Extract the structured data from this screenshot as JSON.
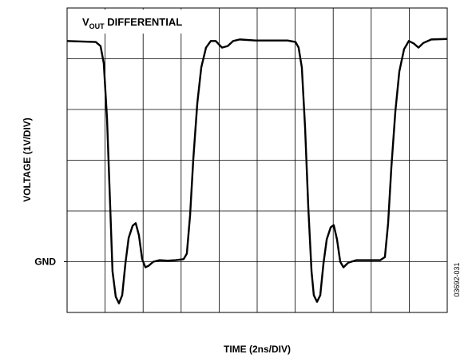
{
  "chart_data": {
    "type": "line",
    "annotation": [
      "V",
      "OUT",
      " DIFFERENTIAL"
    ],
    "ylabel": "VOLTAGE (1V/DIV)",
    "xlabel": "TIME (2ns/DIV)",
    "figure_id": "03692-031",
    "xlim": [
      0,
      20
    ],
    "ylim": [
      -1,
      5
    ],
    "xgrid": [
      2,
      4,
      6,
      8,
      10,
      12,
      14,
      16,
      18
    ],
    "ygrid": [
      0,
      1,
      2,
      3,
      4
    ],
    "yticks": [
      {
        "value": 0,
        "label": "GND"
      }
    ],
    "grid": true,
    "series": [
      {
        "color": "#000000",
        "x": [
          0,
          1.51,
          1.76,
          1.93,
          2.1,
          2.27,
          2.39,
          2.56,
          2.73,
          2.9,
          3.07,
          3.24,
          3.45,
          3.61,
          3.78,
          3.95,
          4.12,
          4.29,
          4.54,
          4.87,
          5.29,
          5.71,
          6.13,
          6.3,
          6.47,
          6.64,
          6.85,
          7.06,
          7.31,
          7.56,
          7.82,
          8.15,
          8.45,
          8.74,
          9.08,
          9.92,
          11.6,
          12.02,
          12.18,
          12.35,
          12.52,
          12.69,
          12.86,
          12.98,
          13.15,
          13.32,
          13.49,
          13.66,
          13.87,
          14.03,
          14.2,
          14.37,
          14.54,
          14.79,
          15.21,
          15.8,
          16.47,
          16.72,
          16.89,
          17.06,
          17.27,
          17.48,
          17.73,
          17.98,
          18.24,
          18.49,
          18.74,
          19.16,
          20
        ],
        "values": [
          4.35,
          4.33,
          4.25,
          3.91,
          2.83,
          1.07,
          -0.19,
          -0.69,
          -0.82,
          -0.66,
          -0.03,
          0.47,
          0.71,
          0.76,
          0.52,
          0.05,
          -0.11,
          -0.08,
          0,
          0.03,
          0.02,
          0.03,
          0.05,
          0.16,
          0.91,
          2.02,
          3.12,
          3.83,
          4.22,
          4.35,
          4.35,
          4.22,
          4.25,
          4.35,
          4.38,
          4.36,
          4.36,
          4.33,
          4.22,
          3.83,
          2.65,
          1.07,
          -0.19,
          -0.66,
          -0.79,
          -0.66,
          -0.03,
          0.44,
          0.68,
          0.72,
          0.44,
          0,
          -0.11,
          -0.02,
          0.03,
          0.03,
          0.03,
          0.09,
          0.76,
          1.86,
          2.96,
          3.75,
          4.19,
          4.35,
          4.3,
          4.22,
          4.31,
          4.38,
          4.39
        ]
      }
    ]
  }
}
